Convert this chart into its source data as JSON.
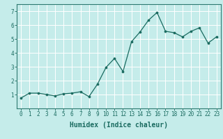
{
  "x": [
    0,
    1,
    2,
    3,
    4,
    5,
    6,
    7,
    8,
    9,
    10,
    11,
    12,
    13,
    14,
    15,
    16,
    17,
    18,
    19,
    20,
    21,
    22,
    23
  ],
  "y": [
    0.75,
    1.1,
    1.1,
    1.0,
    0.9,
    1.05,
    1.1,
    1.2,
    0.85,
    1.75,
    2.95,
    3.6,
    2.65,
    4.8,
    5.5,
    6.35,
    6.9,
    5.55,
    5.45,
    5.15,
    5.55,
    5.8,
    4.7,
    5.15
  ],
  "line_color": "#1a6b60",
  "marker": "o",
  "marker_size": 2.2,
  "bg_color": "#c5ecea",
  "grid_color": "#ffffff",
  "xlabel": "Humidex (Indice chaleur)",
  "ylim": [
    0,
    7.5
  ],
  "xlim": [
    -0.5,
    23.5
  ],
  "yticks": [
    1,
    2,
    3,
    4,
    5,
    6,
    7
  ],
  "xticks": [
    0,
    1,
    2,
    3,
    4,
    5,
    6,
    7,
    8,
    9,
    10,
    11,
    12,
    13,
    14,
    15,
    16,
    17,
    18,
    19,
    20,
    21,
    22,
    23
  ],
  "tick_fontsize": 5.5,
  "xlabel_fontsize": 7.0,
  "axis_color": "#2d7a70",
  "tick_color": "#1a6b60"
}
